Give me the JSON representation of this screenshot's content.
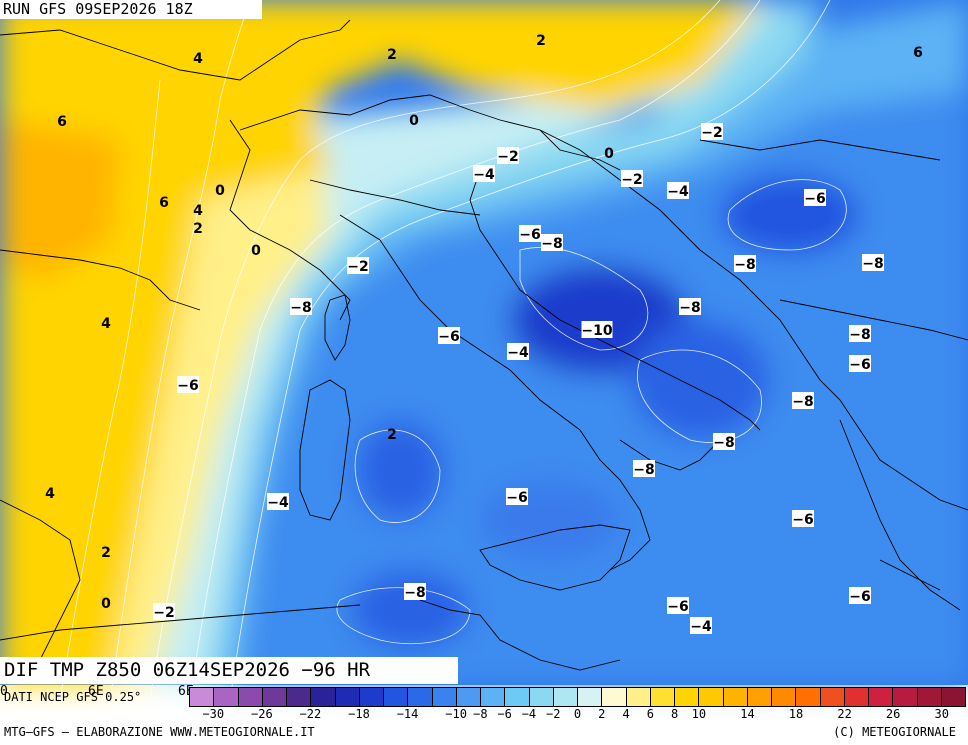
{
  "header": {
    "run": "RUN GFS 09SEP2026 18Z",
    "field": "DIF TMP Z850 06Z14SEP2026 −96 HR"
  },
  "source": "DATI NCEP GFS 0.25°",
  "footer": {
    "left": "MTG–GFS – ELABORAZIONE WWW.METEOGIORNALE.IT",
    "right": "(C) METEOGIORNALE"
  },
  "lon_ticks": [
    "0",
    "6E",
    "6E"
  ],
  "colorbar": {
    "colors": [
      "#c98ad8",
      "#a964c4",
      "#8a4aae",
      "#6e3a9a",
      "#4a2a8c",
      "#2a2298",
      "#1c2cb4",
      "#1e3ccc",
      "#2255e0",
      "#2a6ae8",
      "#3a82ee",
      "#4c9af2",
      "#5cb2f4",
      "#6ccaf4",
      "#8ad8f2",
      "#aee6f2",
      "#d6f2f2",
      "#fffad2",
      "#fff08a",
      "#ffe030",
      "#ffd400",
      "#ffc800",
      "#ffb400",
      "#ffa000",
      "#ff8a00",
      "#ff7000",
      "#f05020",
      "#e03030",
      "#d02040",
      "#b81a40",
      "#a01838",
      "#8a1432"
    ],
    "ticks": [
      "−30",
      "−26",
      "−22",
      "−18",
      "−14",
      "−10",
      "−8",
      "−6",
      "−4",
      "−2",
      "0",
      "2",
      "4",
      "6",
      "8",
      "10",
      "14",
      "18",
      "22",
      "26",
      "30"
    ]
  },
  "contour_labels": [
    "4",
    "2",
    "6",
    "2",
    "0",
    "−2",
    "6",
    "0",
    "4",
    "2",
    "0",
    "6",
    "−2",
    "−4",
    "−2",
    "0",
    "−4",
    "−6",
    "−6",
    "−8",
    "−8",
    "−8",
    "4",
    "−2",
    "−8",
    "−10",
    "−8",
    "−8",
    "−6",
    "−4",
    "−6",
    "−6",
    "2",
    "−8",
    "−8",
    "−6",
    "−8",
    "4",
    "−4",
    "−6",
    "−6",
    "2",
    "0",
    "−2",
    "−8",
    "−6",
    "−4",
    "−4"
  ]
}
